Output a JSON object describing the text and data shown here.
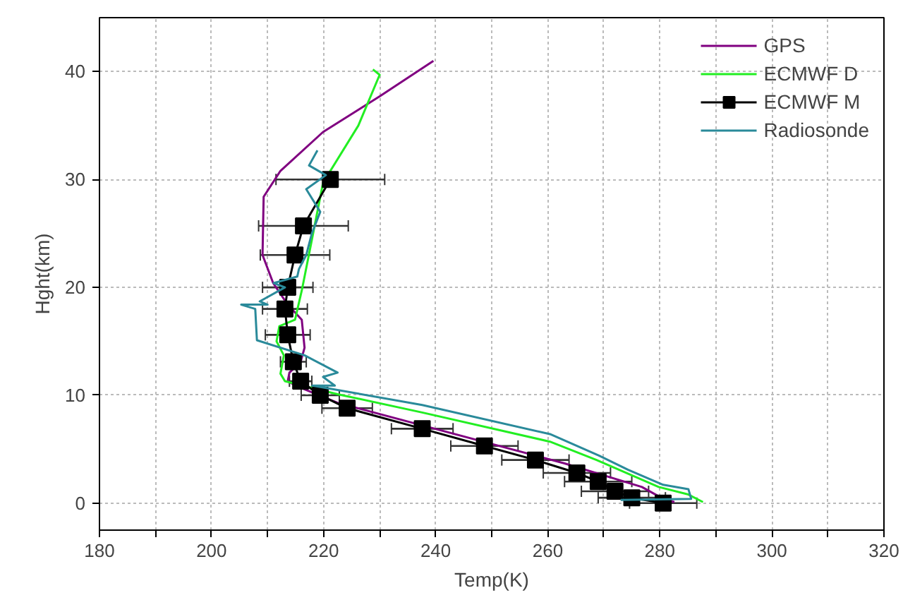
{
  "chart_data": {
    "type": "line",
    "xlabel": "Temp(K)",
    "ylabel": "Hght(km)",
    "xlim": [
      180,
      320
    ],
    "ylim": [
      -2.5,
      45
    ],
    "xticks": [
      180,
      {
        "value": 190,
        "label": null
      },
      200,
      {
        "value": 210,
        "label": null
      },
      220,
      {
        "value": 230,
        "label": null
      },
      240,
      {
        "value": 250,
        "label": null
      },
      260,
      {
        "value": 270,
        "label": null
      },
      280,
      {
        "value": 290,
        "label": null
      },
      300,
      {
        "value": 310,
        "label": null
      },
      320
    ],
    "yticks": [
      0,
      10,
      20,
      30,
      40
    ],
    "grid": true,
    "legend": "top right",
    "series": [
      {
        "name": "GPS",
        "color": "#800080",
        "marker": "none",
        "x": [
          282.6,
          280.6,
          276.8,
          262.9,
          222.5,
          215.4,
          213.6,
          213.9,
          215.9,
          216.6,
          216.1,
          213.6,
          211,
          209.1,
          209.3,
          212.3,
          219.9,
          230,
          239.6
        ],
        "values": [
          0.1,
          0.4,
          1.5,
          3.7,
          9.3,
          10.8,
          11.3,
          12.1,
          13.1,
          14.4,
          17,
          18.4,
          20.4,
          23,
          28.4,
          30.8,
          34.4,
          37.7,
          41
        ]
      },
      {
        "name": "ECMWF D",
        "color": "#22ee22",
        "marker": "none",
        "x": [
          287.7,
          285.1,
          279.8,
          268.7,
          260.4,
          237.6,
          222.5,
          213.1,
          212.3,
          212.9,
          211.6,
          212.1,
          214.9,
          216.1,
          217.9,
          219.9,
          226.2,
          230,
          228.8
        ],
        "values": [
          0.1,
          0.8,
          1.5,
          4,
          5.7,
          8.4,
          10.1,
          11.3,
          12,
          13.7,
          15,
          16.4,
          17,
          19.7,
          24.4,
          29.7,
          35,
          39.7,
          40.2
        ]
      },
      {
        "name": "ECMWF M",
        "color": "#000000",
        "marker": "square",
        "x": [
          280.6,
          275,
          272,
          269,
          265.2,
          257.8,
          248.7,
          237.6,
          224.2,
          219.4,
          215.9,
          214.6,
          213.6,
          213.1,
          213.6,
          214.9,
          216.4,
          221.2
        ],
        "values": [
          0,
          0.5,
          1.1,
          2,
          2.8,
          4,
          5.3,
          6.9,
          8.8,
          10,
          11.3,
          13.1,
          15.6,
          18,
          20,
          23,
          25.7,
          30
        ],
        "xerrors": [
          6,
          6,
          6,
          6,
          6,
          6,
          6,
          5.5,
          4.5,
          3.4,
          2,
          2.3,
          4,
          4,
          4.5,
          6.2,
          8,
          9.7
        ]
      },
      {
        "name": "Radiosonde",
        "color": "#2a8a9a",
        "marker": "none",
        "x": [
          273,
          285.6,
          285.1,
          280.6,
          274.3,
          269.2,
          260.4,
          237.6,
          218,
          222,
          219.9,
          222.5,
          216.6,
          208.1,
          207.8,
          205.3,
          210,
          208.6,
          213.1,
          211.1,
          215.3,
          215.6,
          216.9,
          217.9,
          219.4,
          216.9,
          220.4,
          217.4,
          218.9
        ],
        "values": [
          0.3,
          0.4,
          1.3,
          1.7,
          3.1,
          4.4,
          6.4,
          9.1,
          10.9,
          10.9,
          11.7,
          12.1,
          13.7,
          15.1,
          18,
          18.4,
          18.4,
          18.7,
          20,
          20.4,
          21,
          21.7,
          23,
          25,
          27,
          29.1,
          30.4,
          31.3,
          32.7
        ]
      }
    ]
  }
}
